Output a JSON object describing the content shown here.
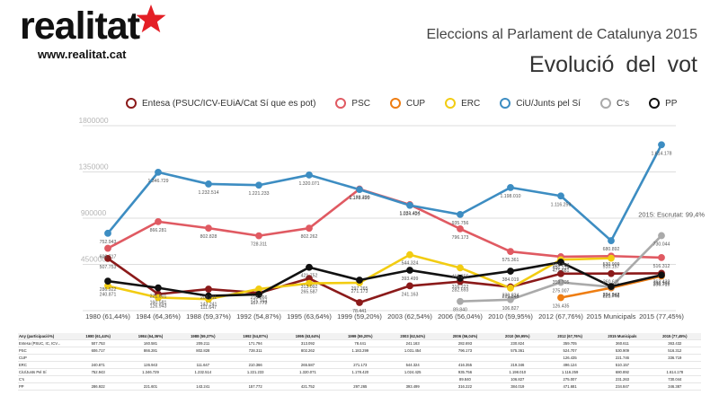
{
  "header": {
    "logo_text": "realitat",
    "logo_url": "www.realitat.cat",
    "title": "Eleccions al Parlament de Catalunya 2015",
    "subtitle": "Evolució  del vot"
  },
  "annotation": "2015: Escrutat: 99,4%",
  "table": {
    "header_first": "Any (participació%)"
  },
  "chart_data": {
    "type": "line",
    "title": "Evolució  del vot",
    "categories": [
      "1980 (61,44%)",
      "1984 (64,36%)",
      "1988 (59,37%)",
      "1992 (54,87%)",
      "1995 (63,64%)",
      "1999 (59,20%)",
      "2003 (62,54%)",
      "2006 (56,04%)",
      "2010 (59,95%)",
      "2012 (67,76%)",
      "2015 Municipals",
      "2015 (77,45%)"
    ],
    "y_ticks": [
      0,
      450000,
      900000,
      1350000,
      1800000
    ],
    "y_tick_labels": [
      "0",
      "450000",
      "900000",
      "1350000",
      "1800000"
    ],
    "ylim": [
      0,
      1800000
    ],
    "grid": true,
    "legend_position": "top",
    "series": [
      {
        "name": "Entesa (PSUC/ICV-EUiA/Cat Sí que es pot)",
        "table_label": "Entesa (PSUC, IC, ICV...",
        "color": "#8b1a1a",
        "values": [
          507753,
          160581,
          209211,
          171794,
          313092,
          78441,
          241163,
          282693,
          230824,
          359705,
          360611,
          363432
        ],
        "labels": [
          "507.753",
          "160.581",
          "209.211",
          "171.794",
          "313.092",
          "78.441",
          "241.163",
          "282.693",
          "230.824",
          "359.705",
          "360.611",
          "363.432"
        ]
      },
      {
        "name": "PSC",
        "table_label": "PSC",
        "color": "#e05a62",
        "values": [
          606717,
          866281,
          802828,
          728311,
          802262,
          1183299,
          1031454,
          796173,
          575361,
          524707,
          530909,
          516312
        ],
        "labels": [
          "606.717",
          "866.281",
          "802.828",
          "728.311",
          "802.262",
          "1.183.299",
          "1.031.454",
          "796.173",
          "575.361",
          "524.707",
          "530.909",
          "516.312"
        ]
      },
      {
        "name": "CUP",
        "table_label": "CUP",
        "color": "#ee7d12",
        "values": [
          null,
          null,
          null,
          null,
          null,
          null,
          null,
          null,
          null,
          126435,
          221746,
          336719
        ],
        "labels": [
          "",
          "",
          "",
          "",
          "",
          "",
          "",
          "",
          "",
          "126.435",
          "221.746",
          "336.719"
        ]
      },
      {
        "name": "ERC",
        "table_label": "ERC",
        "color": "#f2cc12",
        "values": [
          240871,
          126943,
          111647,
          210366,
          265587,
          271173,
          544324,
          416355,
          219346,
          496124,
          510157,
          null
        ],
        "labels": [
          "240.871",
          "126.943",
          "111.647",
          "210.366",
          "265.587",
          "271.173",
          "544.324",
          "416.355",
          "219.346",
          "496.124",
          "510.157",
          ""
        ]
      },
      {
        "name": "CiU/Junts pel Sí",
        "table_label": "CiU/Junts Pel Sí",
        "color": "#3d8dc2",
        "values": [
          752943,
          1346729,
          1232514,
          1221233,
          1320071,
          1178420,
          1024425,
          935756,
          1198010,
          1116259,
          680892,
          1614178
        ],
        "labels": [
          "752.943",
          "1.346.729",
          "1.232.514",
          "1.221.233",
          "1.320.071",
          "1.178.420",
          "1.024.425",
          "935.756",
          "1.198.010",
          "1.116.259",
          "680.892",
          "1.614.178"
        ]
      },
      {
        "name": "C's",
        "table_label": "C's",
        "color": "#aaaaaa",
        "values": [
          null,
          null,
          null,
          null,
          null,
          null,
          null,
          89840,
          106827,
          275007,
          231263,
          730044
        ],
        "labels": [
          "",
          "",
          "",
          "",
          "",
          "",
          "",
          "89.840",
          "106.827",
          "275.007",
          "231.263",
          "730.044"
        ]
      },
      {
        "name": "PP",
        "table_label": "PP",
        "color": "#111111",
        "values": [
          286922,
          221601,
          143241,
          157772,
          421752,
          297265,
          393499,
          316222,
          384019,
          471681,
          234847,
          346387
        ],
        "labels": [
          "286.922",
          "221.601",
          "143.241",
          "157.772",
          "421.752",
          "297.265",
          "393.499",
          "316.222",
          "384.019",
          "471.681",
          "234.847",
          "346.387"
        ]
      }
    ]
  }
}
